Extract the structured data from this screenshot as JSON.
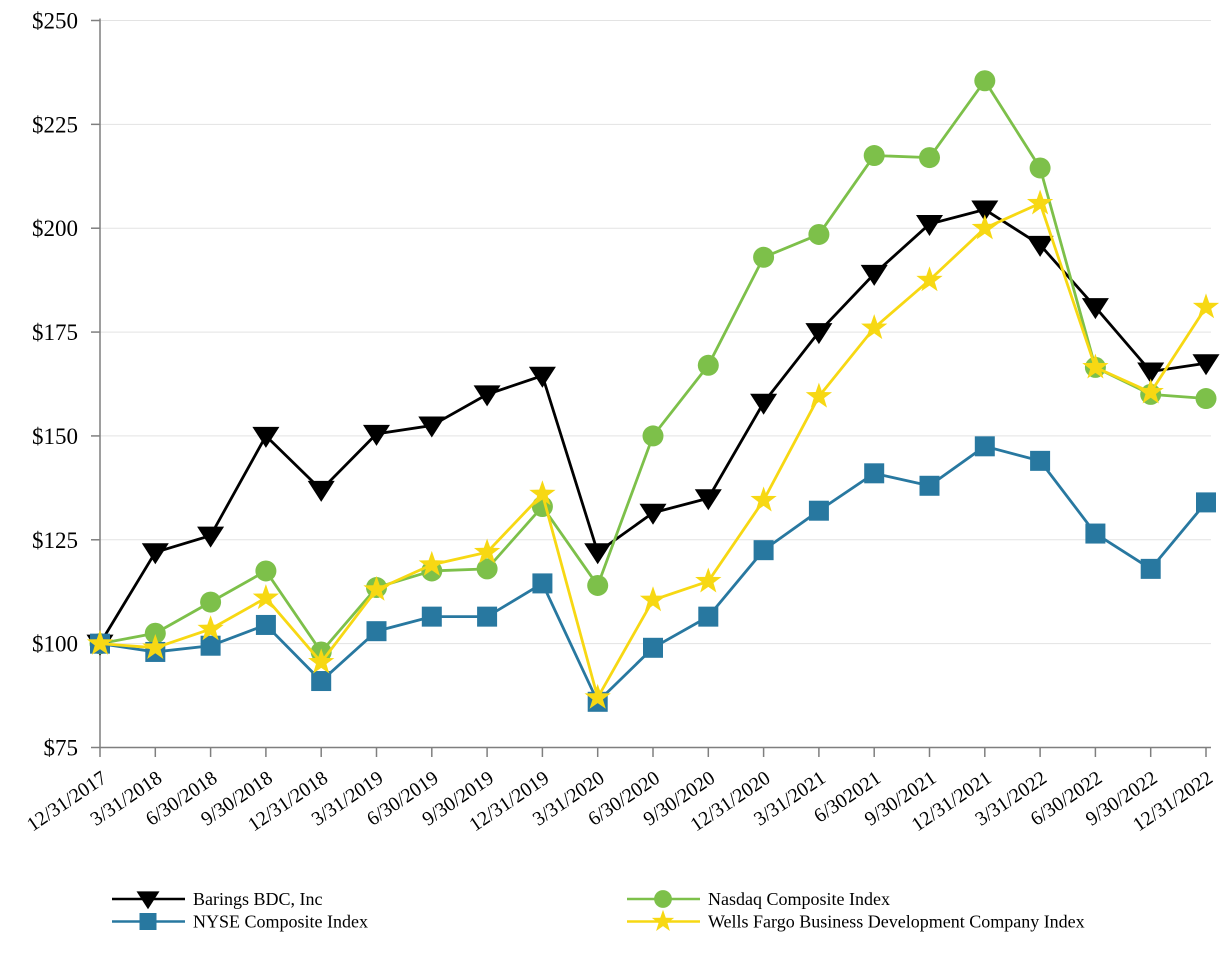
{
  "chart_data": {
    "type": "line",
    "title": "",
    "x_categories": [
      "12/31/2017",
      "3/31/2018",
      "6/30/2018",
      "9/30/2018",
      "12/31/2018",
      "3/31/2019",
      "6/30/2019",
      "9/30/2019",
      "12/31/2019",
      "3/31/2020",
      "6/30/2020",
      "9/30/2020",
      "12/31/2020",
      "3/31/2021",
      "6/302021",
      "9/30/2021",
      "12/31/2021",
      "3/31/2022",
      "6/30/2022",
      "9/30/2022",
      "12/31/2022"
    ],
    "y_axis": {
      "min": 75,
      "max": 250,
      "step": 25,
      "prefix": "$",
      "tick_labels": [
        "$75",
        "$100",
        "$125",
        "$150",
        "$175",
        "$200",
        "$225",
        "$250"
      ]
    },
    "grid": "horizontal-only",
    "axis_color": "#7F7F7F",
    "grid_color": "#E3E3E3",
    "series": [
      {
        "name": "Barings BDC, Inc",
        "color": "#000000",
        "marker": "triangle-down",
        "values": [
          100,
          122,
          126,
          150,
          137,
          150.5,
          152.5,
          160,
          164.5,
          122,
          131.5,
          135,
          158,
          175,
          189,
          201,
          204.5,
          196,
          181,
          165.5,
          167.5
        ]
      },
      {
        "name": "Nasdaq Composite Index",
        "color": "#7DC04A",
        "marker": "circle",
        "values": [
          100,
          102.5,
          110,
          117.5,
          98,
          113.5,
          117.5,
          118,
          133,
          114,
          150,
          167,
          193,
          198.5,
          217.5,
          217,
          235.5,
          214.5,
          166.5,
          160,
          159
        ]
      },
      {
        "name": "NYSE Composite Index",
        "color": "#2878A0",
        "marker": "square",
        "values": [
          100,
          98,
          99.5,
          104.5,
          91,
          103,
          106.5,
          106.5,
          114.5,
          86,
          99,
          106.5,
          122.5,
          132,
          141,
          138,
          147.5,
          144,
          126.5,
          118,
          134
        ]
      },
      {
        "name": "Wells Fargo Business Development Company Index",
        "color": "#F7D813",
        "marker": "star",
        "values": [
          100,
          99,
          103.5,
          111,
          95.5,
          113,
          119,
          122,
          136,
          87,
          110.5,
          115,
          134.5,
          159.5,
          176,
          187.5,
          200,
          206,
          166.5,
          160.5,
          181
        ]
      }
    ],
    "legend": {
      "position": "bottom",
      "columns": [
        [
          "Barings BDC, Inc",
          "NYSE Composite Index"
        ],
        [
          "Nasdaq Composite Index",
          "Wells Fargo Business Development Company Index"
        ]
      ]
    }
  }
}
